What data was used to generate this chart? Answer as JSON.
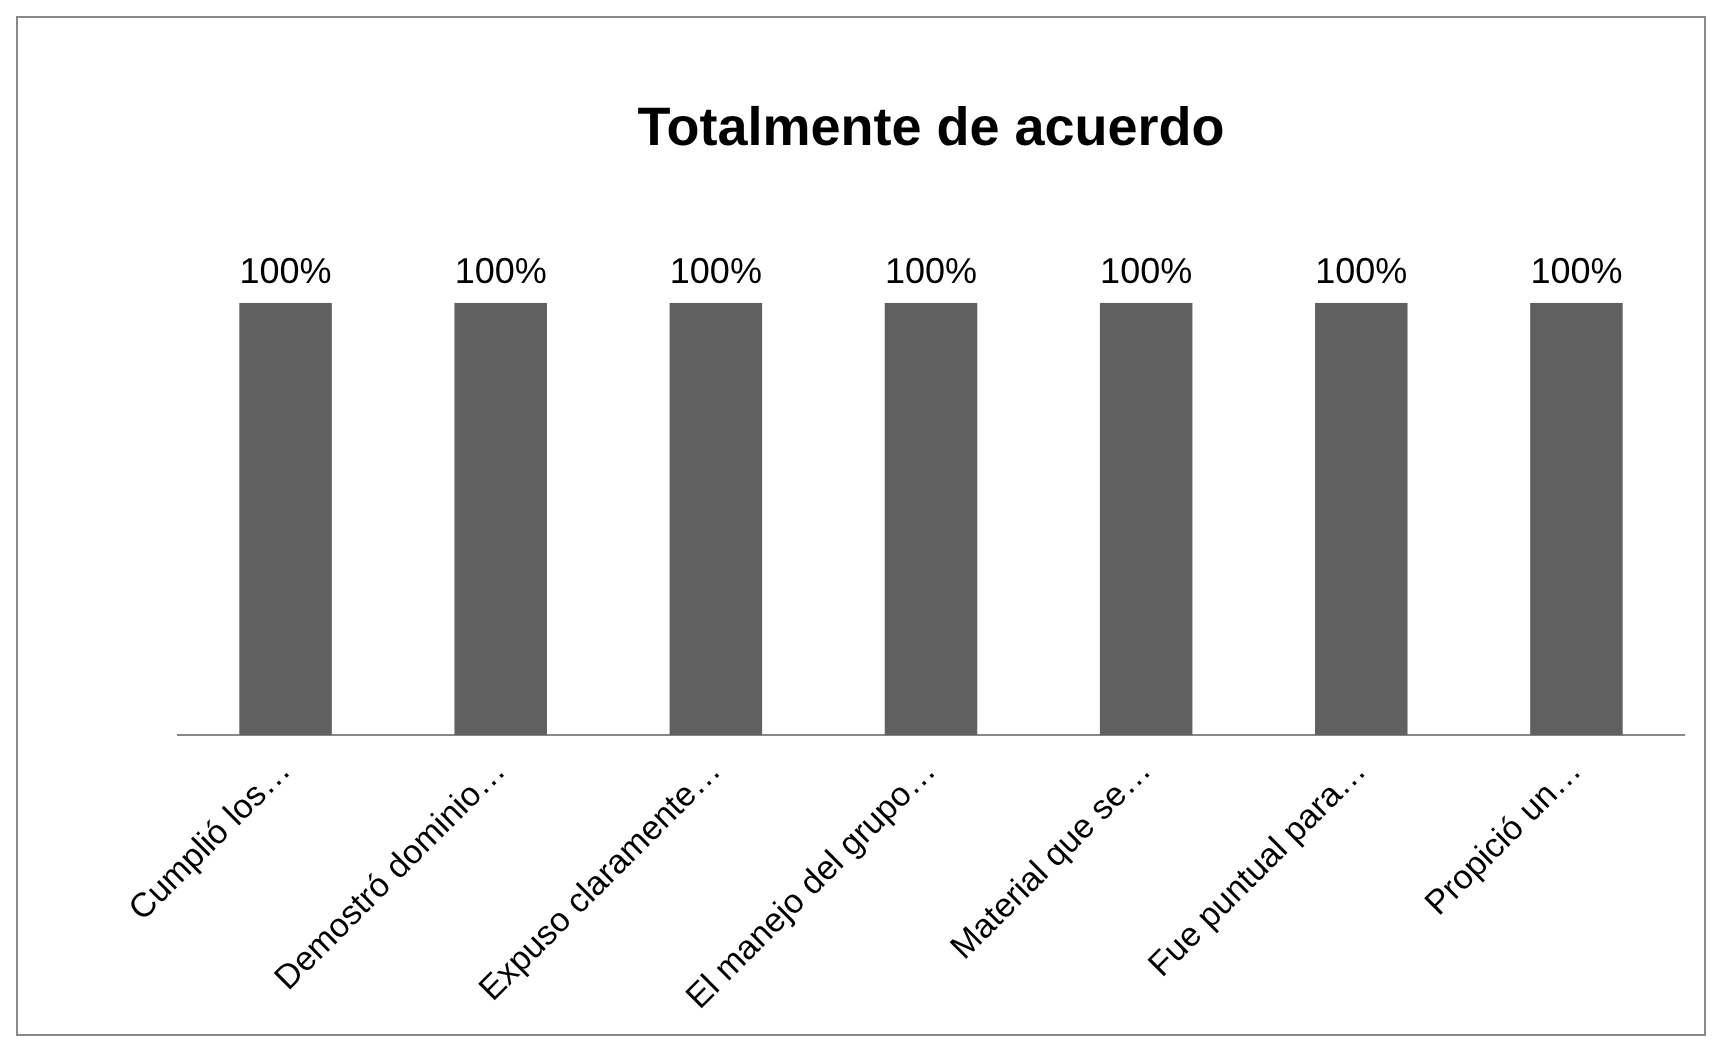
{
  "chart_data": {
    "type": "bar",
    "title": "Totalmente de acuerdo",
    "categories": [
      "Cumplió los…",
      "Demostró dominio…",
      "Expuso claramente…",
      "El manejo del grupo…",
      "Material que se…",
      "Fue puntual para…",
      "Propició un…"
    ],
    "values": [
      100,
      100,
      100,
      100,
      100,
      100,
      100
    ],
    "value_labels": [
      "100%",
      "100%",
      "100%",
      "100%",
      "100%",
      "100%",
      "100%"
    ],
    "color": "#606060",
    "tick_labels": "x",
    "grid": false,
    "legend": false
  }
}
